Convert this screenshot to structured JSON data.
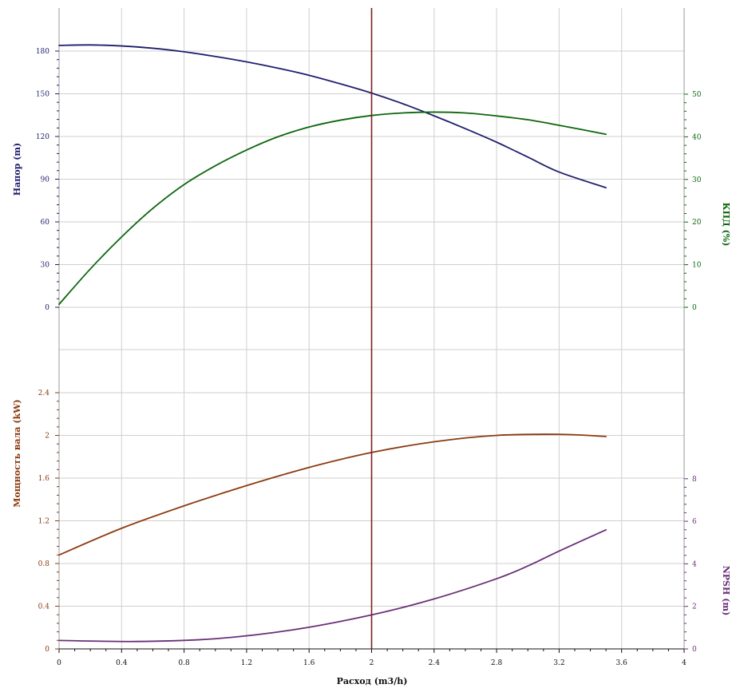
{
  "chart_data": {
    "type": "line",
    "x_axis": {
      "label": "Расход (m3/h)",
      "range": [
        0,
        4
      ],
      "ticks": [
        "0",
        "0.4",
        "0.8",
        "1.2",
        "1.6",
        "2",
        "2.4",
        "2.8",
        "3.2",
        "3.6",
        "4"
      ]
    },
    "operating_point_x": 2,
    "colors": {
      "head": "#1f1f6e",
      "efficiency": "#0d660d",
      "power": "#8b3a0f",
      "npsh": "#6b2f7a",
      "marker": "#7a1f1f",
      "axis_x": "#111111"
    },
    "panels": [
      {
        "axes": [
          {
            "side": "left",
            "label": "Напор (m)",
            "range": [
              0,
              180
            ],
            "ticks": [
              "0",
              "30",
              "60",
              "90",
              "120",
              "150",
              "180"
            ]
          },
          {
            "side": "right",
            "label": "КПД (%)",
            "range": [
              0,
              50
            ],
            "ticks": [
              "0",
              "10",
              "20",
              "30",
              "40",
              "50"
            ]
          }
        ],
        "series": [
          {
            "id": "head",
            "axis": "left",
            "x": [
              0,
              0.2,
              0.4,
              0.6,
              0.8,
              1.0,
              1.2,
              1.4,
              1.6,
              1.8,
              2.0,
              2.2,
              2.4,
              2.6,
              2.8,
              3.0,
              3.2,
              3.5
            ],
            "y": [
              184,
              184.3,
              183.6,
              182,
              179.5,
              176.2,
              172.4,
              168,
              163,
              157,
              150.5,
              143,
              134.5,
              125.5,
              116,
              105.5,
              95,
              84
            ]
          },
          {
            "id": "efficiency",
            "axis": "right",
            "x": [
              0,
              0.2,
              0.4,
              0.6,
              0.8,
              1.0,
              1.2,
              1.4,
              1.6,
              1.8,
              2.0,
              2.2,
              2.4,
              2.6,
              2.8,
              3.0,
              3.2,
              3.5
            ],
            "y": [
              0.7,
              9,
              16.5,
              23.2,
              28.8,
              33.2,
              36.9,
              40,
              42.3,
              43.9,
              45,
              45.6,
              45.8,
              45.6,
              44.9,
              44,
              42.7,
              40.6
            ]
          }
        ]
      },
      {
        "axes": [
          {
            "side": "left",
            "label": "Мощность вала (kW)",
            "range": [
              0,
              2.4
            ],
            "ticks": [
              "0",
              "0.4",
              "0.8",
              "1.2",
              "1.6",
              "2",
              "2.4"
            ]
          },
          {
            "side": "right",
            "label": "NPSH (m)",
            "range": [
              0,
              8
            ],
            "ticks": [
              "0",
              "2",
              "4",
              "6",
              "8"
            ]
          }
        ],
        "series": [
          {
            "id": "power",
            "axis": "left",
            "x": [
              0,
              0.4,
              0.8,
              1.2,
              1.6,
              2.0,
              2.4,
              2.8,
              3.2,
              3.5
            ],
            "y": [
              0.88,
              1.13,
              1.34,
              1.53,
              1.7,
              1.84,
              1.94,
              2.0,
              2.01,
              1.99
            ]
          },
          {
            "id": "npsh",
            "axis": "right",
            "x": [
              0,
              0.5,
              1.0,
              1.5,
              2.0,
              2.4,
              2.8,
              3.0,
              3.2,
              3.5
            ],
            "y": [
              0.4,
              0.35,
              0.48,
              0.9,
              1.6,
              2.35,
              3.3,
              3.9,
              4.6,
              5.6
            ]
          }
        ]
      }
    ]
  }
}
